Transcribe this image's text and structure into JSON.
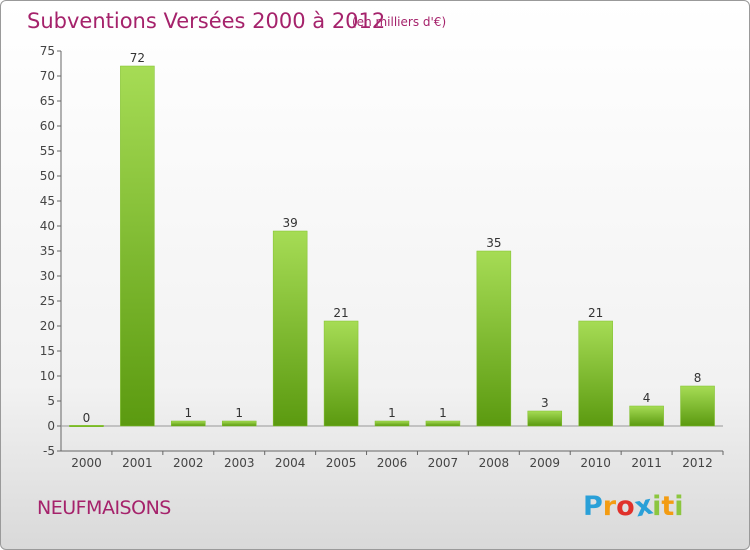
{
  "header": {
    "title": "Subventions Versées 2000 à 2012",
    "unit": "(en milliers d'€)"
  },
  "footer": {
    "commune": "NEUFMAISONS",
    "logo_letters": [
      "P",
      "r",
      "o",
      "x",
      "i",
      "t",
      "i"
    ],
    "logo_colors": [
      "#2aa0d8",
      "#f39c12",
      "#e0312b",
      "#2aa0d8",
      "#8cc63f",
      "#f39c12",
      "#8cc63f"
    ]
  },
  "colors": {
    "bar_light": "#a6dc55",
    "bar_dark": "#5b9a10",
    "axis": "#666666",
    "grid": "#cccccc",
    "title": "#a5226b"
  },
  "chart_data": {
    "type": "bar",
    "title": "Subventions Versées 2000 à 2012",
    "subtitle": "(en milliers d'€)",
    "categories": [
      "2000",
      "2001",
      "2002",
      "2003",
      "2004",
      "2005",
      "2006",
      "2007",
      "2008",
      "2009",
      "2010",
      "2011",
      "2012"
    ],
    "values": [
      0,
      72,
      1,
      1,
      39,
      21,
      1,
      1,
      35,
      3,
      21,
      4,
      8
    ],
    "ylim": [
      -5,
      75
    ],
    "yticks": [
      -5,
      0,
      5,
      10,
      15,
      20,
      25,
      30,
      35,
      40,
      45,
      50,
      55,
      60,
      65,
      70,
      75
    ],
    "grid": false,
    "legend": "none"
  }
}
